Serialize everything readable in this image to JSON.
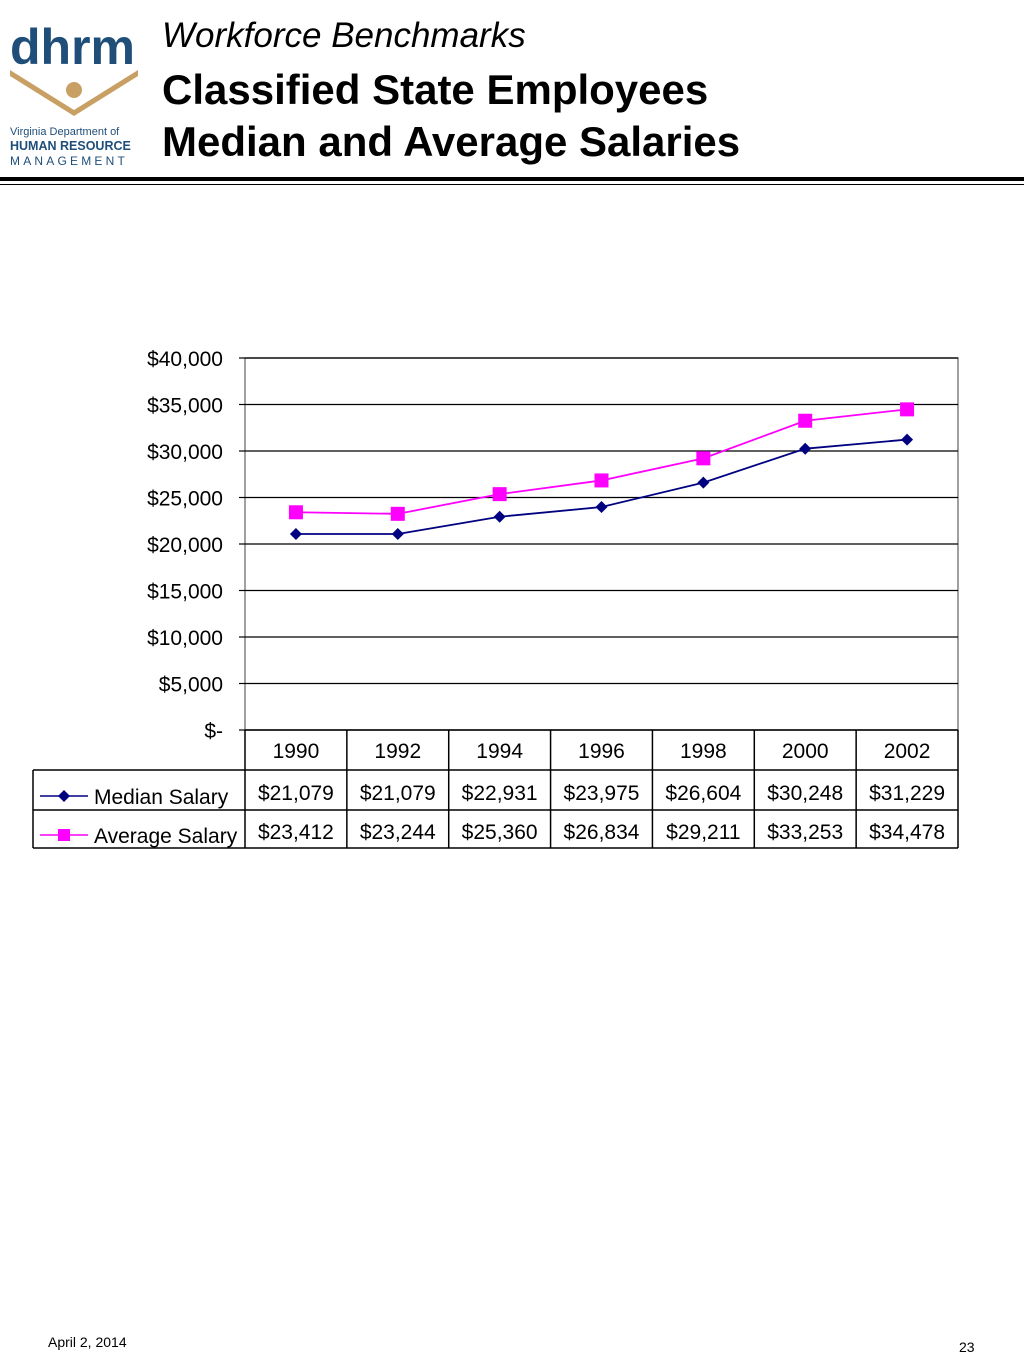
{
  "header": {
    "subtitle": "Workforce Benchmarks",
    "title_line1": "Classified State Employees",
    "title_line2": "Median and Average Salaries"
  },
  "logo": {
    "wordmark": "dhrm",
    "line1": "Virginia Department of",
    "line2": "HUMAN RESOURCE",
    "line3": "MANAGEMENT",
    "colors": {
      "text": "#1f4e79",
      "figure": "#c8a063"
    }
  },
  "footer": {
    "date": "April 2, 2014",
    "page": "23"
  },
  "chart_data": {
    "type": "line",
    "categories": [
      "1990",
      "1992",
      "1994",
      "1996",
      "1998",
      "2000",
      "2002"
    ],
    "y_tick_labels": [
      "$-",
      "$5,000",
      "$10,000",
      "$15,000",
      "$20,000",
      "$25,000",
      "$30,000",
      "$35,000",
      "$40,000"
    ],
    "ylim": [
      0,
      40000
    ],
    "grid": true,
    "legend": "data-table",
    "series": [
      {
        "name": "Median Salary",
        "color": "#000080",
        "marker": "diamond",
        "values": [
          21079,
          21079,
          22931,
          23975,
          26604,
          30248,
          31229
        ],
        "labels": [
          "$21,079",
          "$21,079",
          "$22,931",
          "$23,975",
          "$26,604",
          "$30,248",
          "$31,229"
        ]
      },
      {
        "name": "Average Salary",
        "color": "#ff00ff",
        "marker": "square",
        "values": [
          23412,
          23244,
          25360,
          26834,
          29211,
          33253,
          34478
        ],
        "labels": [
          "$23,412",
          "$23,244",
          "$25,360",
          "$26,834",
          "$29,211",
          "$33,253",
          "$34,478"
        ]
      }
    ]
  }
}
